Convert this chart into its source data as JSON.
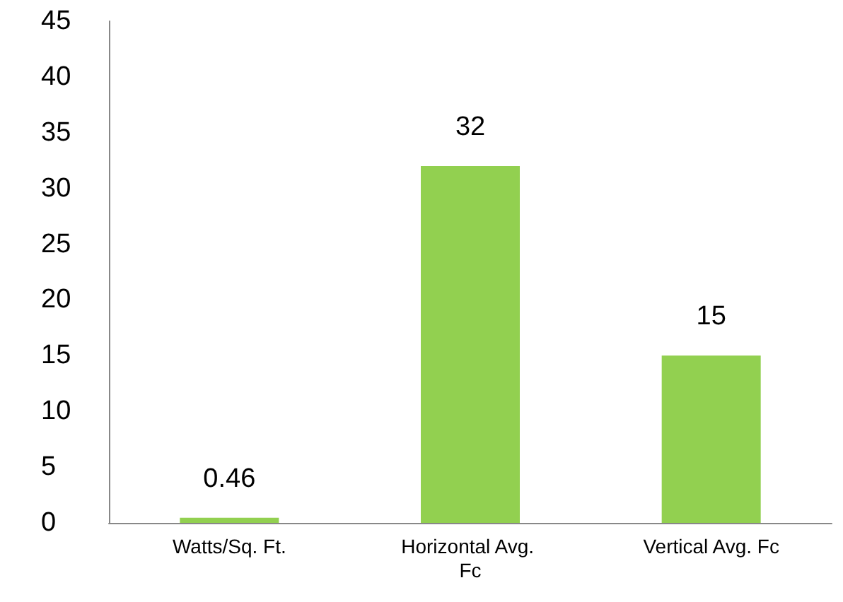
{
  "chart_data": {
    "type": "bar",
    "categories": [
      "Watts/Sq. Ft.",
      "Horizontal Avg. Fc",
      "Vertical Avg. Fc"
    ],
    "values": [
      0.46,
      32,
      15
    ],
    "color": "#92d050",
    "ylim": [
      0,
      45
    ],
    "yticks": [
      0,
      5,
      10,
      15,
      20,
      25,
      30,
      35,
      40,
      45
    ],
    "grid": false,
    "data_labels": true
  }
}
